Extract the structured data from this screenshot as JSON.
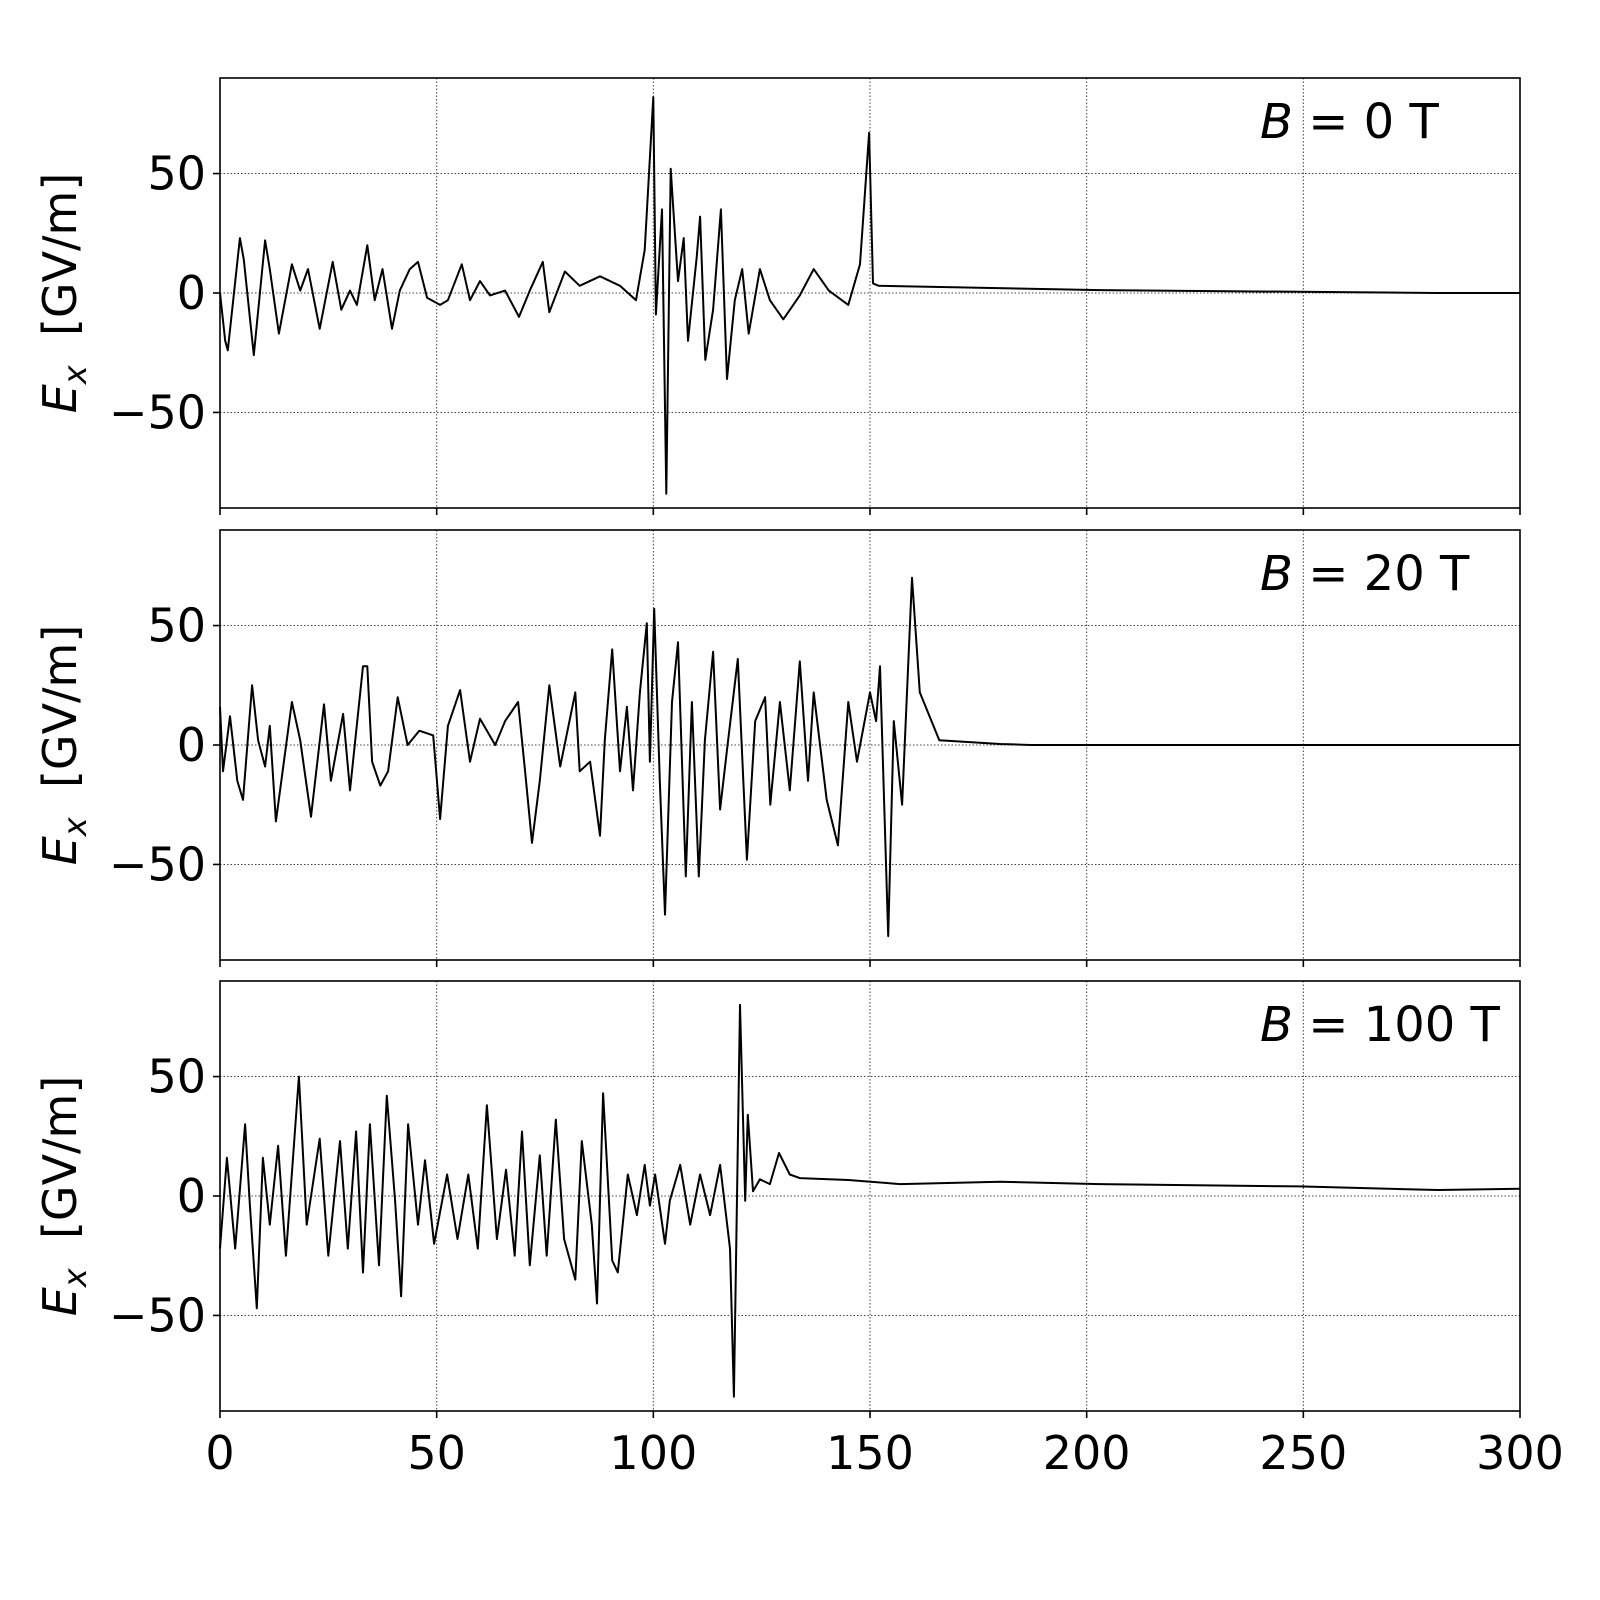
{
  "chart_data": [
    {
      "type": "line",
      "annotation": {
        "var": "B",
        "eq": " = 0 T"
      },
      "ylabel": {
        "main": "E",
        "sub": "x",
        "unit": "  [GV/m]"
      },
      "xlim": [
        0,
        300
      ],
      "ylim": [
        -90,
        90
      ],
      "xticks": [
        0,
        50,
        100,
        150,
        200,
        250,
        300
      ],
      "yticks": [
        -50,
        0,
        50
      ],
      "grid": true,
      "show_xtick_labels": false,
      "color": "#000000",
      "points": [
        [
          0,
          0
        ],
        [
          1.2,
          -20
        ],
        [
          1.8,
          -24
        ],
        [
          4.6,
          23
        ],
        [
          5.5,
          14
        ],
        [
          7.8,
          -26
        ],
        [
          10.4,
          22
        ],
        [
          11.5,
          10
        ],
        [
          13.6,
          -17
        ],
        [
          16.6,
          12
        ],
        [
          18.5,
          1
        ],
        [
          20.3,
          10
        ],
        [
          23,
          -15
        ],
        [
          26,
          13
        ],
        [
          28,
          -7
        ],
        [
          30,
          1
        ],
        [
          31.6,
          -5
        ],
        [
          34,
          20
        ],
        [
          35.7,
          -3
        ],
        [
          37.5,
          10
        ],
        [
          39.7,
          -15
        ],
        [
          41.5,
          1
        ],
        [
          43.8,
          10
        ],
        [
          45.7,
          13
        ],
        [
          47.8,
          -2
        ],
        [
          50.8,
          -5
        ],
        [
          52.6,
          -3
        ],
        [
          55.8,
          12
        ],
        [
          57.7,
          -3
        ],
        [
          60,
          5
        ],
        [
          62.3,
          -1
        ],
        [
          65.8,
          1
        ],
        [
          69,
          -10
        ],
        [
          71.5,
          1
        ],
        [
          74.5,
          13
        ],
        [
          76,
          -8
        ],
        [
          79.6,
          9
        ],
        [
          83,
          3
        ],
        [
          87.7,
          7
        ],
        [
          92.3,
          3
        ],
        [
          96,
          -3
        ],
        [
          98,
          18
        ],
        [
          100,
          82
        ],
        [
          100.6,
          -9
        ],
        [
          102,
          35
        ],
        [
          103,
          -84
        ],
        [
          104,
          52
        ],
        [
          105.7,
          5
        ],
        [
          107,
          23
        ],
        [
          108,
          -20
        ],
        [
          110,
          15
        ],
        [
          110.8,
          32
        ],
        [
          112,
          -28
        ],
        [
          113.8,
          -7
        ],
        [
          115.6,
          35
        ],
        [
          117,
          -36
        ],
        [
          118.8,
          -3
        ],
        [
          120.5,
          10
        ],
        [
          122,
          -17
        ],
        [
          124.6,
          10
        ],
        [
          126.9,
          -3
        ],
        [
          130,
          -11
        ],
        [
          133.8,
          -1
        ],
        [
          137,
          10
        ],
        [
          140.5,
          1
        ],
        [
          145,
          -5
        ],
        [
          147.7,
          12
        ],
        [
          149.8,
          67
        ],
        [
          150.7,
          4
        ],
        [
          152,
          3
        ],
        [
          203,
          1.2
        ],
        [
          281,
          0
        ],
        [
          300,
          0
        ]
      ]
    },
    {
      "type": "line",
      "annotation": {
        "var": "B",
        "eq": " = 20 T"
      },
      "ylabel": {
        "main": "E",
        "sub": "x",
        "unit": "  [GV/m]"
      },
      "xlim": [
        0,
        300
      ],
      "ylim": [
        -90,
        90
      ],
      "xticks": [
        0,
        50,
        100,
        150,
        200,
        250,
        300
      ],
      "yticks": [
        -50,
        0,
        50
      ],
      "grid": true,
      "show_xtick_labels": false,
      "color": "#000000",
      "points": [
        [
          0,
          16
        ],
        [
          0.7,
          -11
        ],
        [
          2.3,
          12
        ],
        [
          4,
          -15
        ],
        [
          5.3,
          -23
        ],
        [
          7.4,
          25
        ],
        [
          8.8,
          2
        ],
        [
          10.4,
          -9
        ],
        [
          11.5,
          8
        ],
        [
          12.9,
          -32
        ],
        [
          16.6,
          18
        ],
        [
          18.5,
          2
        ],
        [
          21,
          -30
        ],
        [
          24,
          17
        ],
        [
          25.6,
          -15
        ],
        [
          28.4,
          13
        ],
        [
          30,
          -19
        ],
        [
          33,
          33
        ],
        [
          34,
          33
        ],
        [
          35.1,
          -7
        ],
        [
          37,
          -17
        ],
        [
          38.8,
          -11
        ],
        [
          41,
          20
        ],
        [
          43.3,
          0
        ],
        [
          46,
          6
        ],
        [
          49.2,
          4
        ],
        [
          50.8,
          -31
        ],
        [
          52.6,
          8
        ],
        [
          55.4,
          23
        ],
        [
          57.7,
          -7
        ],
        [
          60,
          11
        ],
        [
          63.5,
          0
        ],
        [
          65.8,
          10
        ],
        [
          68.8,
          18
        ],
        [
          70.4,
          -11
        ],
        [
          72,
          -41
        ],
        [
          73.8,
          -15
        ],
        [
          76,
          25
        ],
        [
          78.5,
          -9
        ],
        [
          82,
          22
        ],
        [
          83,
          -11
        ],
        [
          85.4,
          -7
        ],
        [
          87.7,
          -38
        ],
        [
          88.8,
          2
        ],
        [
          90.5,
          40
        ],
        [
          92.3,
          -11
        ],
        [
          93.9,
          16
        ],
        [
          95.3,
          -19
        ],
        [
          96.9,
          22
        ],
        [
          98.5,
          51
        ],
        [
          99.2,
          -7
        ],
        [
          100.2,
          57
        ],
        [
          101.5,
          -15
        ],
        [
          102.7,
          -71
        ],
        [
          104.3,
          18
        ],
        [
          105.7,
          43
        ],
        [
          107.5,
          -55
        ],
        [
          108.9,
          18
        ],
        [
          110.5,
          -55
        ],
        [
          111.9,
          2
        ],
        [
          113.8,
          39
        ],
        [
          115.4,
          -27
        ],
        [
          117,
          -2
        ],
        [
          119.5,
          36
        ],
        [
          121.6,
          -48
        ],
        [
          123.5,
          10
        ],
        [
          125.8,
          20
        ],
        [
          127,
          -25
        ],
        [
          129.2,
          18
        ],
        [
          131.5,
          -19
        ],
        [
          133.8,
          35
        ],
        [
          135.7,
          -15
        ],
        [
          137,
          22
        ],
        [
          140,
          -23
        ],
        [
          142.6,
          -42
        ],
        [
          145,
          18
        ],
        [
          147,
          -7
        ],
        [
          150,
          22
        ],
        [
          151.4,
          10
        ],
        [
          152.3,
          33
        ],
        [
          154.2,
          -80
        ],
        [
          155.5,
          10
        ],
        [
          157.4,
          -25
        ],
        [
          159.7,
          70
        ],
        [
          161.5,
          22
        ],
        [
          166,
          2
        ],
        [
          180,
          0.4
        ],
        [
          187,
          0
        ],
        [
          300,
          0
        ]
      ]
    },
    {
      "type": "line",
      "annotation": {
        "var": "B",
        "eq": " = 100 T"
      },
      "ylabel": {
        "main": "E",
        "sub": "x",
        "unit": "  [GV/m]"
      },
      "xlim": [
        0,
        300
      ],
      "ylim": [
        -90,
        90
      ],
      "xticks": [
        0,
        50,
        100,
        150,
        200,
        250,
        300
      ],
      "yticks": [
        -50,
        0,
        50
      ],
      "grid": true,
      "show_xtick_labels": true,
      "color": "#000000",
      "points": [
        [
          0,
          -22
        ],
        [
          1.6,
          16
        ],
        [
          3.5,
          -22
        ],
        [
          5.8,
          30
        ],
        [
          6.9,
          -4
        ],
        [
          8.5,
          -47
        ],
        [
          9.9,
          16
        ],
        [
          11.5,
          -12
        ],
        [
          13.4,
          21
        ],
        [
          15.2,
          -25
        ],
        [
          18.2,
          50
        ],
        [
          20,
          -12
        ],
        [
          23,
          24
        ],
        [
          25,
          -25
        ],
        [
          27.7,
          23
        ],
        [
          29.5,
          -22
        ],
        [
          31.4,
          27
        ],
        [
          33,
          -32
        ],
        [
          34.6,
          30
        ],
        [
          36.7,
          -29
        ],
        [
          38.5,
          42
        ],
        [
          40.4,
          -2
        ],
        [
          41.8,
          -42
        ],
        [
          43.4,
          30
        ],
        [
          45.7,
          -12
        ],
        [
          47.3,
          15
        ],
        [
          49.4,
          -20
        ],
        [
          52.4,
          9
        ],
        [
          54.8,
          -18
        ],
        [
          57.3,
          9
        ],
        [
          59.5,
          -22
        ],
        [
          61.6,
          38
        ],
        [
          63.9,
          -18
        ],
        [
          66,
          11
        ],
        [
          68,
          -25
        ],
        [
          69.7,
          27
        ],
        [
          71.5,
          -29
        ],
        [
          73.8,
          17
        ],
        [
          75.4,
          -25
        ],
        [
          77.5,
          32
        ],
        [
          79.4,
          -18
        ],
        [
          82,
          -35
        ],
        [
          83.5,
          23
        ],
        [
          85.8,
          -12
        ],
        [
          87,
          -45
        ],
        [
          88.4,
          43
        ],
        [
          90.5,
          -27
        ],
        [
          91.8,
          -32
        ],
        [
          94.1,
          9
        ],
        [
          96.2,
          -8
        ],
        [
          98,
          13
        ],
        [
          99.2,
          -4
        ],
        [
          100.4,
          9
        ],
        [
          102.7,
          -20
        ],
        [
          103.8,
          -2
        ],
        [
          106.2,
          13
        ],
        [
          108.5,
          -12
        ],
        [
          110.8,
          9
        ],
        [
          113.1,
          -8
        ],
        [
          115.4,
          13
        ],
        [
          117.7,
          -22
        ],
        [
          118.6,
          -84
        ],
        [
          120,
          80
        ],
        [
          121.2,
          -2
        ],
        [
          121.8,
          34
        ],
        [
          123,
          2
        ],
        [
          124.6,
          7
        ],
        [
          126.9,
          5
        ],
        [
          129,
          18
        ],
        [
          131.5,
          9
        ],
        [
          133.8,
          7.5
        ],
        [
          145,
          6.7
        ],
        [
          157,
          5
        ],
        [
          180,
          6
        ],
        [
          203,
          5
        ],
        [
          249,
          4
        ],
        [
          281,
          2.5
        ],
        [
          300,
          3
        ]
      ]
    }
  ]
}
